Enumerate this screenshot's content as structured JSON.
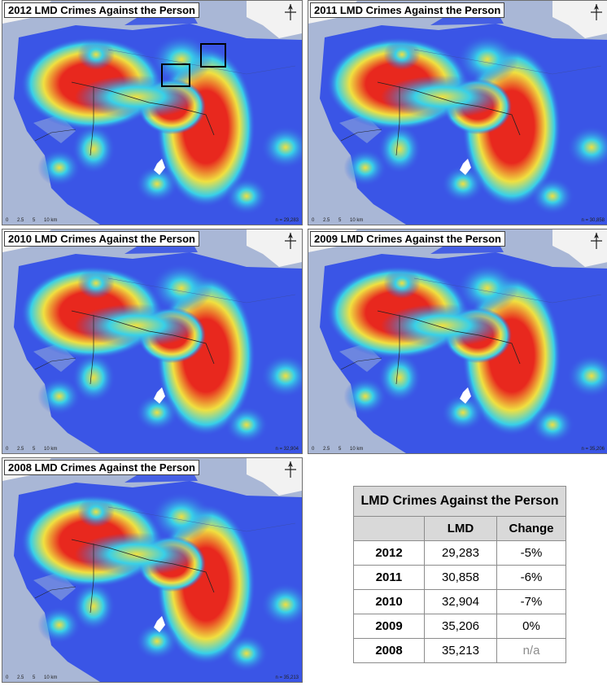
{
  "panels": [
    {
      "id": "p2012",
      "title": "2012 LMD Crimes Against the Person",
      "count": "n = 29,283",
      "highlight_boxes": true
    },
    {
      "id": "p2011",
      "title": "2011 LMD Crimes Against the Person",
      "count": "n = 30,858",
      "highlight_boxes": false
    },
    {
      "id": "p2010",
      "title": "2010 LMD Crimes Against the Person",
      "count": "n = 32,904",
      "highlight_boxes": false
    },
    {
      "id": "p2009",
      "title": "2009 LMD Crimes Against the Person",
      "count": "n = 35,206",
      "highlight_boxes": false
    },
    {
      "id": "p2008",
      "title": "2008 LMD Crimes Against the Person",
      "count": "n = 35,213",
      "highlight_boxes": false
    }
  ],
  "scale_labels": [
    "0",
    "2.5",
    "5",
    "10 km"
  ],
  "heat_colors": {
    "low": "#3a55e6",
    "mid": "#38d0e8",
    "warm": "#f0e040",
    "hot": "#e8281e"
  },
  "summary_table": {
    "caption": "LMD Crimes Against the Person",
    "columns": [
      "",
      "LMD",
      "Change"
    ],
    "rows": [
      {
        "year": "2012",
        "lmd": "29,283",
        "change": "-5%"
      },
      {
        "year": "2011",
        "lmd": "30,858",
        "change": "-6%"
      },
      {
        "year": "2010",
        "lmd": "32,904",
        "change": "-7%"
      },
      {
        "year": "2009",
        "lmd": "35,206",
        "change": "0%"
      },
      {
        "year": "2008",
        "lmd": "35,213",
        "change": "n/a"
      }
    ]
  }
}
